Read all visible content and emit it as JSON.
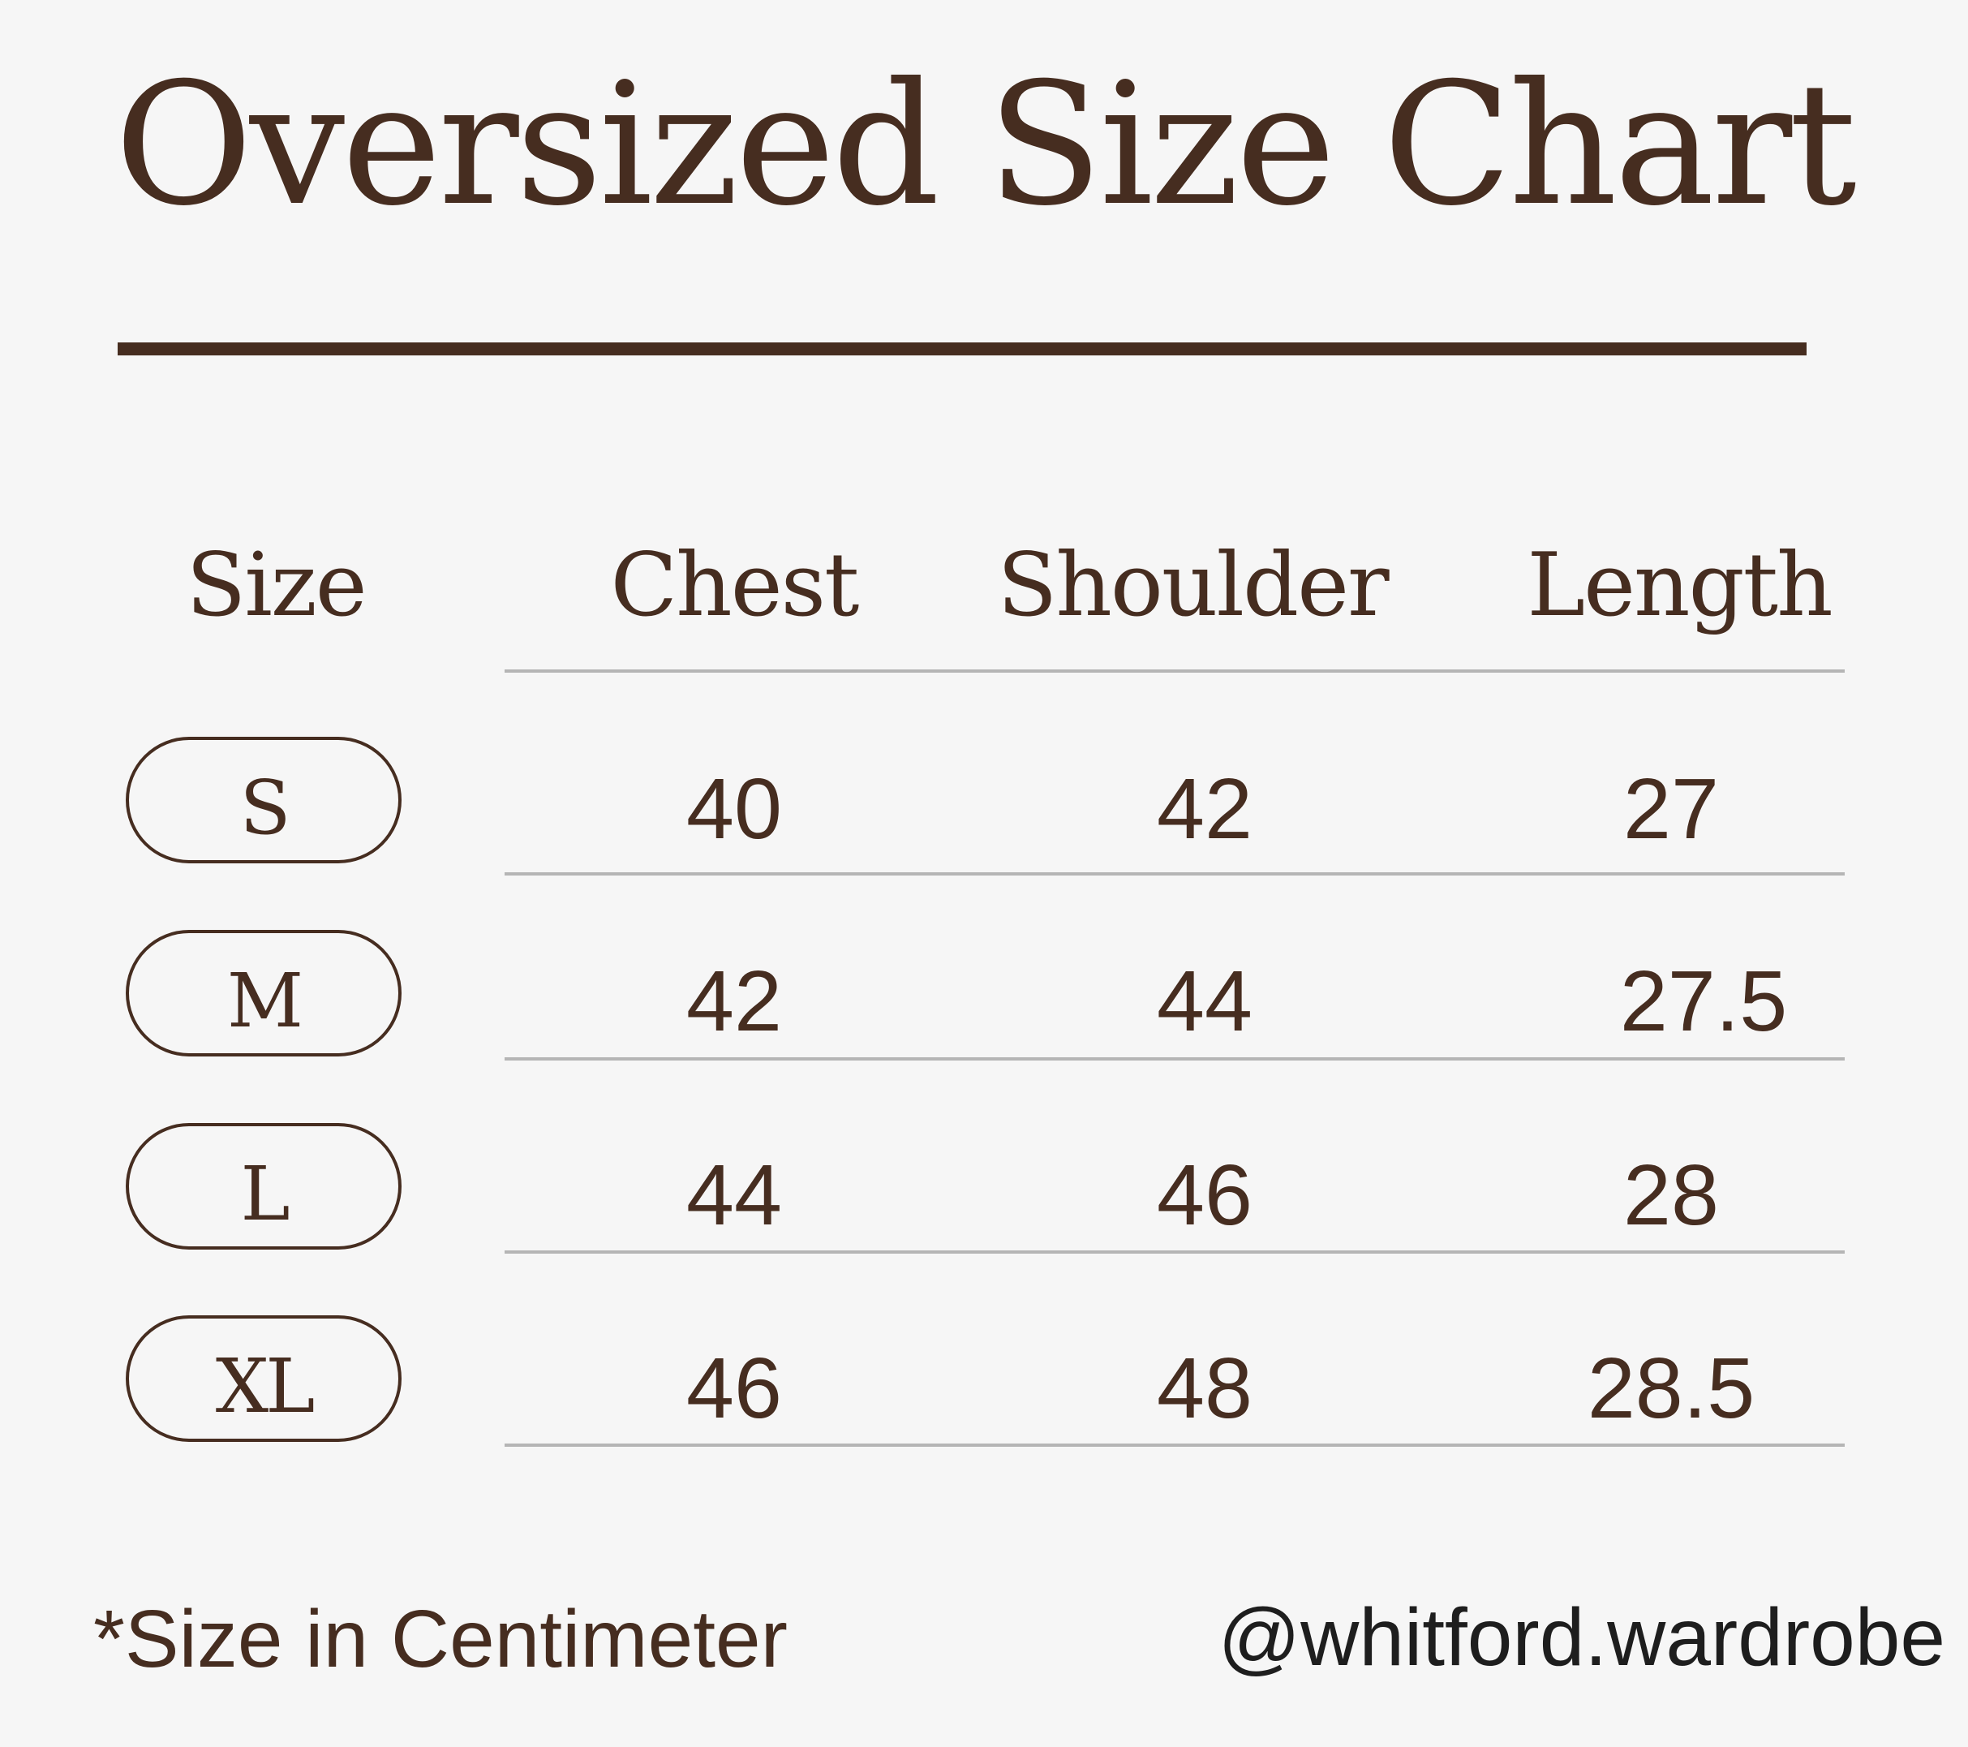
{
  "title": "Oversized Size Chart",
  "columns": [
    "Size",
    "Chest",
    "Shoulder",
    "Length"
  ],
  "rows": [
    {
      "size": "S",
      "chest": "40",
      "shoulder": "42",
      "length": "27"
    },
    {
      "size": "M",
      "chest": "42",
      "shoulder": "44",
      "length": "27.5"
    },
    {
      "size": "L",
      "chest": "44",
      "shoulder": "46",
      "length": "28"
    },
    {
      "size": "XL",
      "chest": "46",
      "shoulder": "48",
      "length": "28.5"
    }
  ],
  "footnote": "*Size in Centimeter",
  "handle": "@whitford.wardrobe",
  "colors": {
    "background": "#f6f6f6",
    "text_brown": "#462d20",
    "rule_gray": "#b5b5b5"
  }
}
